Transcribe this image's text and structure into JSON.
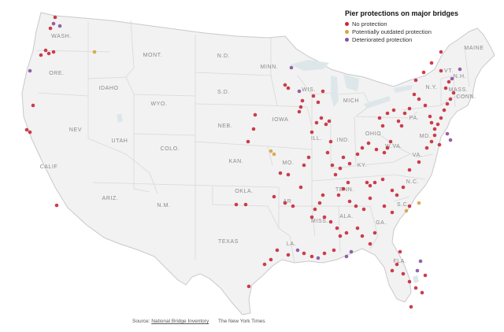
{
  "legend": {
    "title": "Pier protections on major bridges",
    "items": [
      {
        "label": "No protection",
        "color": "#c8283a"
      },
      {
        "label": "Potentially outdated protection",
        "color": "#d6a43a"
      },
      {
        "label": "Deteriorated protection",
        "color": "#8a4f9e"
      }
    ]
  },
  "source": {
    "prefix": "Source:",
    "link": "National Bridge Inventory",
    "credit": "The New York Times"
  },
  "states": [
    {
      "id": "wa",
      "label": "WASH."
    },
    {
      "id": "or",
      "label": "ORE."
    },
    {
      "id": "ca",
      "label": "CALIF"
    },
    {
      "id": "nv",
      "label": "NEV"
    },
    {
      "id": "id",
      "label": "IDAHO"
    },
    {
      "id": "mt",
      "label": "MONT."
    },
    {
      "id": "wy",
      "label": "WYO."
    },
    {
      "id": "ut",
      "label": "UTAH"
    },
    {
      "id": "az",
      "label": "ARIZ."
    },
    {
      "id": "co",
      "label": "COLO."
    },
    {
      "id": "nm",
      "label": "N.M."
    },
    {
      "id": "nd",
      "label": "N.D."
    },
    {
      "id": "sd",
      "label": "S.D."
    },
    {
      "id": "ne",
      "label": "NEB."
    },
    {
      "id": "ks",
      "label": "KAN."
    },
    {
      "id": "ok",
      "label": "OKLA."
    },
    {
      "id": "tx",
      "label": "TEXAS"
    },
    {
      "id": "mn",
      "label": "MINN."
    },
    {
      "id": "ia",
      "label": "IOWA"
    },
    {
      "id": "mo",
      "label": "MO."
    },
    {
      "id": "ar",
      "label": "AR"
    },
    {
      "id": "la",
      "label": "LA."
    },
    {
      "id": "wi",
      "label": "WIS."
    },
    {
      "id": "il",
      "label": "ILL."
    },
    {
      "id": "mi",
      "label": "MICH"
    },
    {
      "id": "in",
      "label": "IND."
    },
    {
      "id": "oh",
      "label": "OHIO"
    },
    {
      "id": "ky",
      "label": "KY."
    },
    {
      "id": "tn",
      "label": "TENN."
    },
    {
      "id": "ms",
      "label": "MISS."
    },
    {
      "id": "al",
      "label": "ALA."
    },
    {
      "id": "ga",
      "label": "GA."
    },
    {
      "id": "fl",
      "label": "FLA."
    },
    {
      "id": "sc",
      "label": "S.C."
    },
    {
      "id": "nc",
      "label": "N.C."
    },
    {
      "id": "va",
      "label": "VA."
    },
    {
      "id": "wv",
      "label": "W.VA."
    },
    {
      "id": "pa",
      "label": "PA."
    },
    {
      "id": "ny",
      "label": "N.Y."
    },
    {
      "id": "md",
      "label": "MD."
    },
    {
      "id": "vt",
      "label": "VT."
    },
    {
      "id": "nh",
      "label": "N.H."
    },
    {
      "id": "ma",
      "label": "MASS."
    },
    {
      "id": "ct",
      "label": "CONN."
    },
    {
      "id": "me",
      "label": "MAINE"
    }
  ]
}
